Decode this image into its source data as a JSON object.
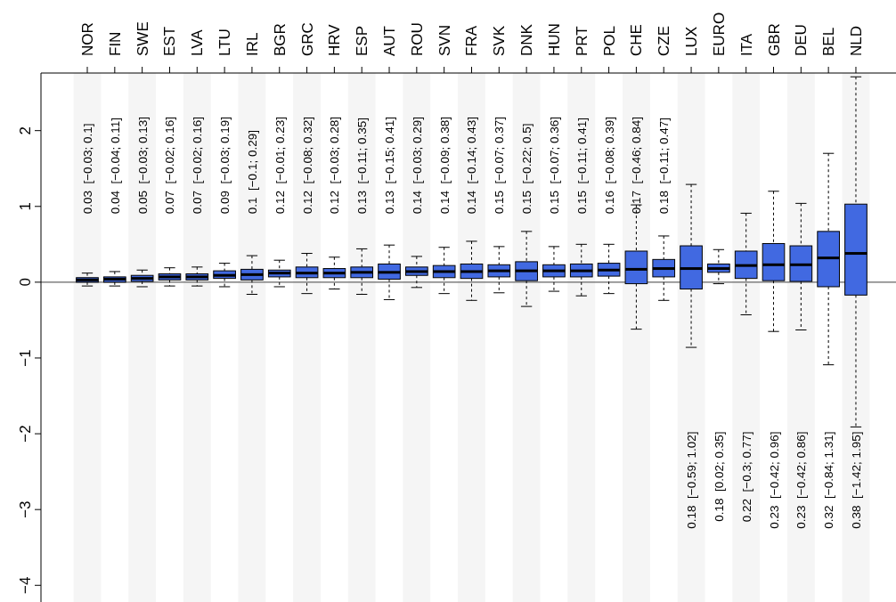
{
  "chart_data": {
    "type": "box",
    "categories": [
      "NOR",
      "FIN",
      "SWE",
      "EST",
      "LVA",
      "LTU",
      "IRL",
      "BGR",
      "GRC",
      "HRV",
      "ESP",
      "AUT",
      "ROU",
      "SVN",
      "FRA",
      "SVK",
      "DNK",
      "HUN",
      "PRT",
      "POL",
      "CHE",
      "CZE",
      "LUX",
      "EURO",
      "ITA",
      "GBR",
      "DEU",
      "BEL",
      "NLD"
    ],
    "color": "#4169e1",
    "boxes": [
      {
        "low": -0.05,
        "q1": 0.0,
        "median": 0.03,
        "q3": 0.06,
        "high": 0.12
      },
      {
        "low": -0.05,
        "q1": 0.0,
        "median": 0.04,
        "q3": 0.07,
        "high": 0.14
      },
      {
        "low": -0.06,
        "q1": 0.01,
        "median": 0.05,
        "q3": 0.09,
        "high": 0.16
      },
      {
        "low": -0.05,
        "q1": 0.03,
        "median": 0.07,
        "q3": 0.11,
        "high": 0.19
      },
      {
        "low": -0.05,
        "q1": 0.03,
        "median": 0.07,
        "q3": 0.11,
        "high": 0.2
      },
      {
        "low": -0.06,
        "q1": 0.05,
        "median": 0.09,
        "q3": 0.15,
        "high": 0.25
      },
      {
        "low": -0.16,
        "q1": 0.03,
        "median": 0.1,
        "q3": 0.17,
        "high": 0.35
      },
      {
        "low": -0.06,
        "q1": 0.07,
        "median": 0.12,
        "q3": 0.16,
        "high": 0.29
      },
      {
        "low": -0.15,
        "q1": 0.06,
        "median": 0.12,
        "q3": 0.2,
        "high": 0.38
      },
      {
        "low": -0.09,
        "q1": 0.06,
        "median": 0.12,
        "q3": 0.18,
        "high": 0.33
      },
      {
        "low": -0.16,
        "q1": 0.06,
        "median": 0.13,
        "q3": 0.2,
        "high": 0.44
      },
      {
        "low": -0.23,
        "q1": 0.04,
        "median": 0.13,
        "q3": 0.24,
        "high": 0.49
      },
      {
        "low": -0.07,
        "q1": 0.09,
        "median": 0.14,
        "q3": 0.2,
        "high": 0.34
      },
      {
        "low": -0.15,
        "q1": 0.06,
        "median": 0.14,
        "q3": 0.22,
        "high": 0.46
      },
      {
        "low": -0.24,
        "q1": 0.05,
        "median": 0.14,
        "q3": 0.24,
        "high": 0.54
      },
      {
        "low": -0.14,
        "q1": 0.07,
        "median": 0.15,
        "q3": 0.23,
        "high": 0.47
      },
      {
        "low": -0.32,
        "q1": 0.02,
        "median": 0.15,
        "q3": 0.27,
        "high": 0.67
      },
      {
        "low": -0.12,
        "q1": 0.07,
        "median": 0.15,
        "q3": 0.23,
        "high": 0.47
      },
      {
        "low": -0.18,
        "q1": 0.07,
        "median": 0.15,
        "q3": 0.24,
        "high": 0.5
      },
      {
        "low": -0.15,
        "q1": 0.08,
        "median": 0.16,
        "q3": 0.25,
        "high": 0.5
      },
      {
        "low": -0.62,
        "q1": -0.02,
        "median": 0.17,
        "q3": 0.41,
        "high": 1.02
      },
      {
        "low": -0.24,
        "q1": 0.07,
        "median": 0.18,
        "q3": 0.3,
        "high": 0.61
      },
      {
        "low": -0.86,
        "q1": -0.09,
        "median": 0.18,
        "q3": 0.48,
        "high": 1.29
      },
      {
        "low": -0.02,
        "q1": 0.13,
        "median": 0.18,
        "q3": 0.24,
        "high": 0.43
      },
      {
        "low": -0.43,
        "q1": 0.05,
        "median": 0.22,
        "q3": 0.41,
        "high": 0.91
      },
      {
        "low": -0.65,
        "q1": 0.02,
        "median": 0.23,
        "q3": 0.51,
        "high": 1.2
      },
      {
        "low": -0.63,
        "q1": 0.01,
        "median": 0.23,
        "q3": 0.48,
        "high": 1.04
      },
      {
        "low": -1.09,
        "q1": -0.06,
        "median": 0.32,
        "q3": 0.67,
        "high": 1.7
      },
      {
        "low": -1.91,
        "q1": -0.17,
        "median": 0.38,
        "q3": 1.03,
        "high": 2.71
      }
    ],
    "annotations": [
      "0.03  [−0.03; 0.1]",
      "0.04  [−0.04; 0.11]",
      "0.05  [−0.03; 0.13]",
      "0.07  [−0.02; 0.16]",
      "0.07  [−0.02; 0.16]",
      "0.09  [−0.03; 0.19]",
      "0.1  [−0.1; 0.29]",
      "0.12  [−0.01; 0.23]",
      "0.12  [−0.08; 0.32]",
      "0.12  [−0.03; 0.28]",
      "0.13  [−0.11; 0.35]",
      "0.13  [−0.15; 0.41]",
      "0.14  [−0.03; 0.29]",
      "0.14  [−0.09; 0.38]",
      "0.14  [−0.14; 0.43]",
      "0.15  [−0.07; 0.37]",
      "0.15  [−0.22; 0.5]",
      "0.15  [−0.07; 0.36]",
      "0.15  [−0.11; 0.41]",
      "0.16  [−0.08; 0.39]",
      "0.17  [−0.46; 0.84]",
      "0.18  [−0.11; 0.47]",
      "0.18  [−0.59; 1.02]",
      "0.18  [0.02; 0.35]",
      "0.22  [−0.3; 0.77]",
      "0.23  [−0.42; 0.96]",
      "0.23  [−0.42; 0.86]",
      "0.32  [−0.84; 1.31]",
      "0.38  [−1.42; 1.95]"
    ],
    "bands": [
      {
        "axis": "x",
        "from": "NOR",
        "to": "NOR",
        "color": "#f5f5f5"
      },
      {
        "axis": "x",
        "from": "SWE",
        "to": "SWE",
        "color": "#f5f5f5"
      },
      {
        "axis": "x",
        "from": "LVA",
        "to": "LVA",
        "color": "#f5f5f5"
      },
      {
        "axis": "x",
        "from": "IRL",
        "to": "IRL",
        "color": "#f5f5f5"
      },
      {
        "axis": "x",
        "from": "GRC",
        "to": "GRC",
        "color": "#f5f5f5"
      },
      {
        "axis": "x",
        "from": "ESP",
        "to": "ESP",
        "color": "#f5f5f5"
      },
      {
        "axis": "x",
        "from": "ROU",
        "to": "ROU",
        "color": "#f5f5f5"
      },
      {
        "axis": "x",
        "from": "FRA",
        "to": "FRA",
        "color": "#f5f5f5"
      },
      {
        "axis": "x",
        "from": "DNK",
        "to": "DNK",
        "color": "#f5f5f5"
      },
      {
        "axis": "x",
        "from": "PRT",
        "to": "PRT",
        "color": "#f5f5f5"
      },
      {
        "axis": "x",
        "from": "CHE",
        "to": "CHE",
        "color": "#f5f5f5"
      },
      {
        "axis": "x",
        "from": "LUX",
        "to": "LUX",
        "color": "#f5f5f5"
      },
      {
        "axis": "x",
        "from": "ITA",
        "to": "ITA",
        "color": "#f5f5f5"
      },
      {
        "axis": "x",
        "from": "DEU",
        "to": "DEU",
        "color": "#f5f5f5"
      },
      {
        "axis": "x",
        "from": "NLD",
        "to": "NLD",
        "color": "#f5f5f5"
      }
    ],
    "ref_lines": [
      {
        "axis": "y",
        "value": 0,
        "color": "#666666"
      }
    ],
    "ylim": [
      -4.22,
      2.76
    ],
    "yticks": [
      -4,
      -3,
      -2,
      -1,
      0,
      1,
      2
    ],
    "grid": false
  }
}
